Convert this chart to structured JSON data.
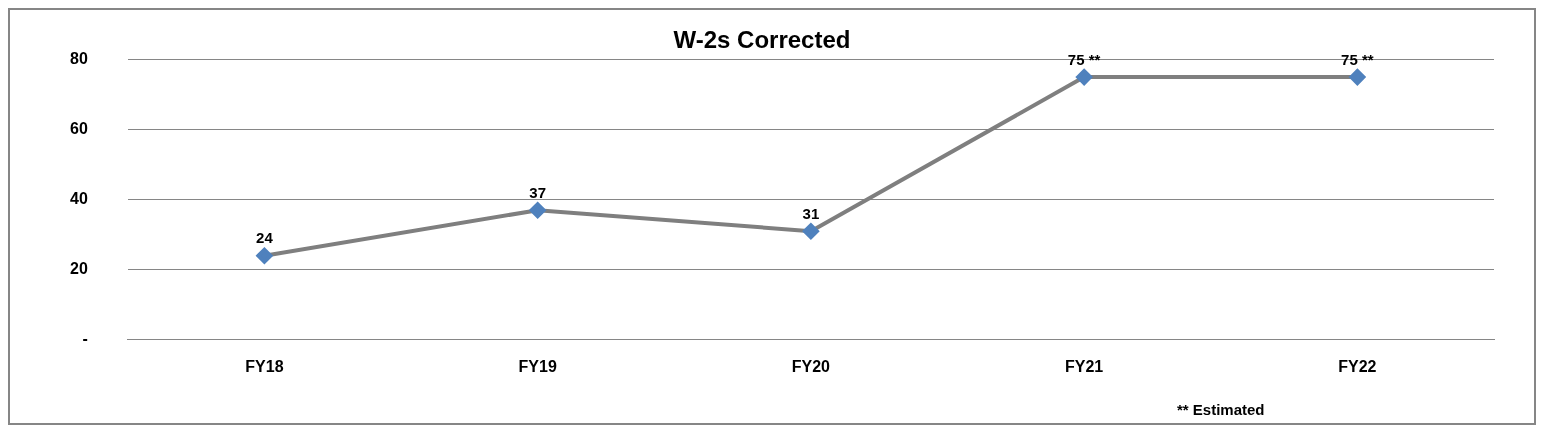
{
  "chart_data": {
    "type": "line",
    "title": "W-2s Corrected",
    "categories": [
      "FY18",
      "FY19",
      "FY20",
      "FY21",
      "FY22"
    ],
    "series": [
      {
        "color": "#7f7f7f",
        "colors": [
          "#4f81bd",
          "#4f81bd",
          "#4f81bd",
          "#4f81bd",
          "#4f81bd"
        ],
        "values": [
          24,
          37,
          31,
          75,
          75
        ],
        "value_labels": [
          "24",
          "37",
          "31",
          "75 **",
          "75 **"
        ]
      }
    ],
    "ylim": [
      0,
      80
    ],
    "yticks": [
      {
        "value": 0,
        "label": "-"
      },
      20,
      40,
      60,
      80
    ],
    "grid": "y",
    "legend": false,
    "marker": "diamond",
    "line_style": "solid",
    "annotations": [
      "** Estimated"
    ]
  }
}
